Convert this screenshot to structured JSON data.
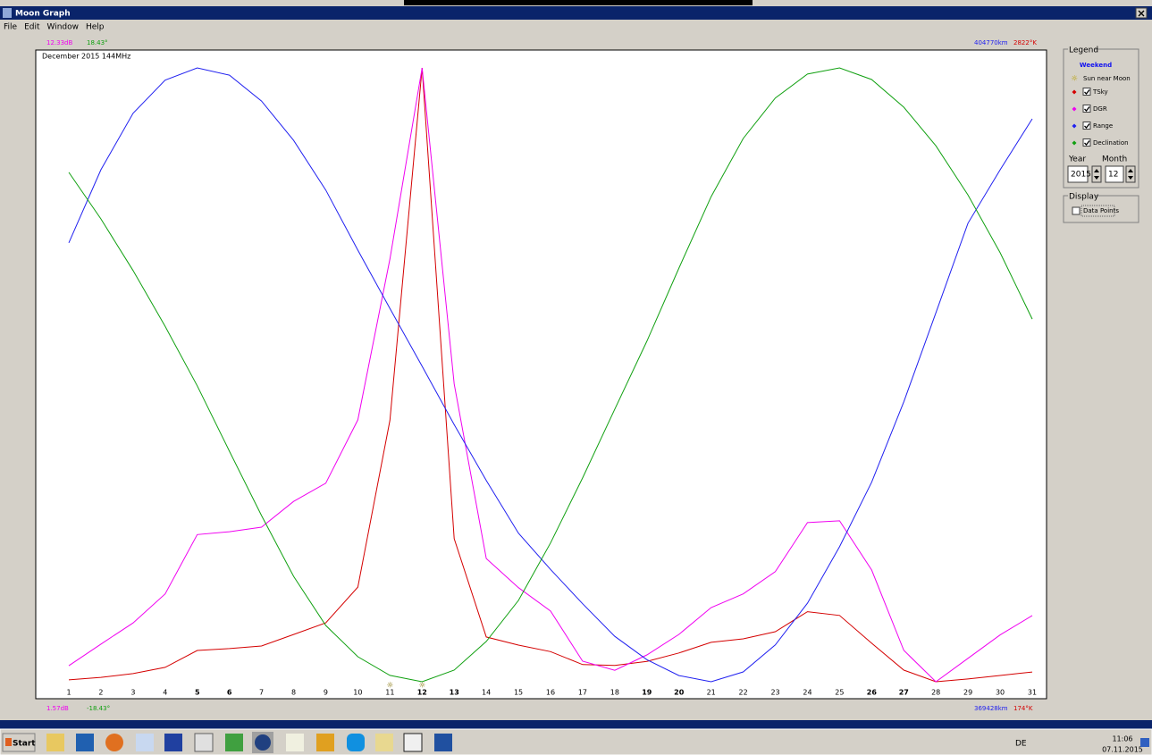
{
  "window": {
    "title": "Moon Graph",
    "menu": [
      "File",
      "Edit",
      "Window",
      "Help"
    ]
  },
  "chart_data": {
    "type": "line",
    "title": "December 2015 144MHz",
    "categories": [
      "1",
      "2",
      "3",
      "4",
      "5",
      "6",
      "7",
      "8",
      "9",
      "10",
      "11",
      "12",
      "13",
      "14",
      "15",
      "16",
      "17",
      "18",
      "19",
      "20",
      "21",
      "22",
      "23",
      "24",
      "25",
      "26",
      "27",
      "28",
      "29",
      "30",
      "31"
    ],
    "weekend": [
      4,
      5,
      11,
      12,
      18,
      19,
      25,
      26
    ],
    "weekend_color": "#1010c0",
    "sun_near_moon": [
      10,
      11
    ],
    "series": [
      {
        "name": "TSky",
        "color": "#d40000",
        "ylim": [
          174,
          2822
        ],
        "yticks": [
          {
            "value": 174,
            "label": "174°K"
          },
          {
            "value": 2822,
            "label": "2822°K"
          }
        ],
        "values": [
          182,
          193,
          209,
          236,
          309,
          317,
          328,
          378,
          428,
          582,
          1302,
          2822,
          791,
          367,
          332,
          304,
          248,
          244,
          262,
          298,
          344,
          359,
          390,
          476,
          460,
          340,
          224,
          174,
          186,
          201,
          216
        ]
      },
      {
        "name": "DGR",
        "color": "#f000f0",
        "ylim": [
          1.57,
          12.33
        ],
        "yticks": [
          {
            "value": 1.57,
            "label": "1.57dB"
          },
          {
            "value": 12.33,
            "label": "12.33dB"
          }
        ],
        "values": [
          1.85,
          2.23,
          2.6,
          3.11,
          4.15,
          4.2,
          4.28,
          4.73,
          5.05,
          6.16,
          8.98,
          12.33,
          6.79,
          3.73,
          3.22,
          2.81,
          1.93,
          1.77,
          2.04,
          2.4,
          2.87,
          3.11,
          3.5,
          4.36,
          4.39,
          3.53,
          2.12,
          1.57,
          1.98,
          2.39,
          2.73
        ]
      },
      {
        "name": "Range",
        "color": "#2020f0",
        "ylim": [
          369428,
          404770
        ],
        "yticks": [
          {
            "value": 369428,
            "label": "369428km"
          },
          {
            "value": 404770,
            "label": "404770km"
          }
        ],
        "values": [
          394698,
          398903,
          402155,
          404064,
          404770,
          404353,
          402862,
          400600,
          397737,
          394274,
          390916,
          387594,
          384236,
          381020,
          377981,
          375896,
          373917,
          372043,
          370700,
          369781,
          369428,
          369994,
          371549,
          373952,
          377203,
          380914,
          385544,
          390669,
          395829,
          398903,
          401837
        ]
      },
      {
        "name": "Declination",
        "color": "#10a010",
        "ylim": [
          -18.43,
          18.43
        ],
        "yticks": [
          {
            "value": -18.43,
            "label": "-18.43°"
          },
          {
            "value": 18.43,
            "label": "18.43°"
          }
        ],
        "values": [
          12.16,
          9.36,
          6.26,
          2.91,
          -0.66,
          -4.59,
          -8.45,
          -12.1,
          -15.05,
          -16.93,
          -18.05,
          -18.43,
          -17.73,
          -16.01,
          -13.55,
          -10.1,
          -6.19,
          -2.06,
          2.02,
          6.41,
          10.7,
          14.19,
          16.62,
          18.06,
          18.43,
          17.73,
          16.07,
          13.75,
          10.8,
          7.33,
          3.35
        ]
      }
    ]
  },
  "legend_panel": {
    "title": "Legend",
    "weekend": "Weekend",
    "sun_near_moon": "Sun near Moon",
    "checked": [
      true,
      true,
      true,
      true
    ],
    "year_label": "Year",
    "month_label": "Month",
    "year": "2015",
    "month": "12"
  },
  "display_panel": {
    "title": "Display",
    "data_points": "Data Points",
    "checked": false
  },
  "taskbar": {
    "start": "Start",
    "language": "DE",
    "time": "11:06",
    "date": "07.11.2015"
  }
}
